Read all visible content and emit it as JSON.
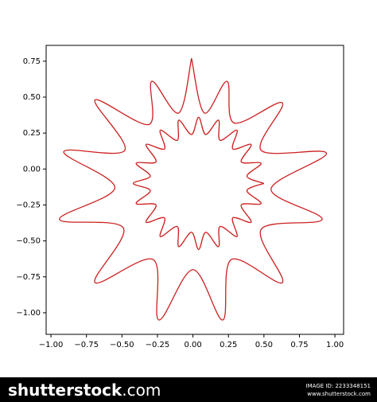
{
  "chart_data": {
    "type": "line",
    "x": [
      -0.01,
      0.08,
      0.24,
      0.29,
      0.63,
      0.48,
      0.94,
      0.55,
      0.91,
      0.48,
      0.63,
      0.27,
      0.21,
      0,
      -0.24,
      -0.28,
      -0.69,
      -0.49,
      -0.94,
      -0.55,
      -0.91,
      -0.48,
      -0.69,
      -0.31,
      -0.29,
      -0.1,
      -0.01,
      null,
      0.5,
      0.38,
      0.48,
      0.34,
      0.41,
      0.28,
      0.31,
      0.19,
      0.18,
      0.09,
      0.04,
      -0.01,
      -0.1,
      -0.11,
      -0.23,
      -0.2,
      -0.33,
      -0.26,
      -0.4,
      -0.3,
      -0.42,
      -0.3,
      -0.4,
      -0.26,
      -0.33,
      -0.2,
      -0.23,
      -0.11,
      -0.1,
      -0.01,
      0.04,
      0.09,
      0.18,
      0.19,
      0.31,
      0.28,
      0.41,
      0.34,
      0.48,
      0.38,
      0.5
    ],
    "series": [
      {
        "color": "#cc1f1f",
        "values": [
          0.77,
          0.39,
          0.61,
          0.32,
          0.46,
          0.13,
          0.11,
          -0.14,
          -0.35,
          -0.42,
          -0.79,
          -0.63,
          -1.05,
          -0.7,
          -1.05,
          -0.63,
          -0.79,
          -0.41,
          -0.35,
          -0.13,
          0.12,
          0.13,
          0.48,
          0.31,
          0.61,
          0.39,
          0.77,
          null,
          -0.1,
          -0.05,
          0.04,
          0.05,
          0.17,
          0.14,
          0.27,
          0.2,
          0.34,
          0.24,
          0.36,
          0.24,
          0.34,
          0.2,
          0.27,
          0.14,
          0.17,
          0.05,
          0.04,
          -0.05,
          -0.1,
          -0.15,
          -0.24,
          -0.25,
          -0.37,
          -0.34,
          -0.47,
          -0.4,
          -0.54,
          -0.44,
          -0.56,
          -0.44,
          -0.54,
          -0.4,
          -0.47,
          -0.34,
          -0.37,
          -0.25,
          -0.24,
          -0.15,
          -0.1
        ]
      }
    ],
    "xlim": [
      -1.034,
      1.061
    ],
    "ylim": [
      -1.15,
      0.86
    ],
    "xticks": [
      {
        "value": -1,
        "label": "−1.00"
      },
      {
        "value": -0.75,
        "label": "−0.75"
      },
      {
        "value": -0.5,
        "label": "−0.50"
      },
      {
        "value": -0.25,
        "label": "−0.25"
      },
      {
        "value": 0,
        "label": "0.00"
      },
      {
        "value": 0.25,
        "label": "0.25"
      },
      {
        "value": 0.5,
        "label": "0.50"
      },
      {
        "value": 0.75,
        "label": "0.75"
      },
      {
        "value": 1,
        "label": "1.00"
      }
    ],
    "yticks": [
      {
        "value": 0.75,
        "label": "0.75"
      },
      {
        "value": 0.5,
        "label": "0.50"
      },
      {
        "value": 0.25,
        "label": "0.25"
      },
      {
        "value": 0,
        "label": "0.00"
      },
      {
        "value": -0.25,
        "label": "−0.25"
      },
      {
        "value": -0.5,
        "label": "−0.50"
      },
      {
        "value": -0.75,
        "label": "−0.75"
      },
      {
        "value": -1,
        "label": "−1.00"
      }
    ]
  },
  "footer": {
    "logo": "shutterstock",
    "logo_suffix": ".com",
    "image_id": "IMAGE ID: 2233348151",
    "site": "www.shutterstock.com"
  }
}
